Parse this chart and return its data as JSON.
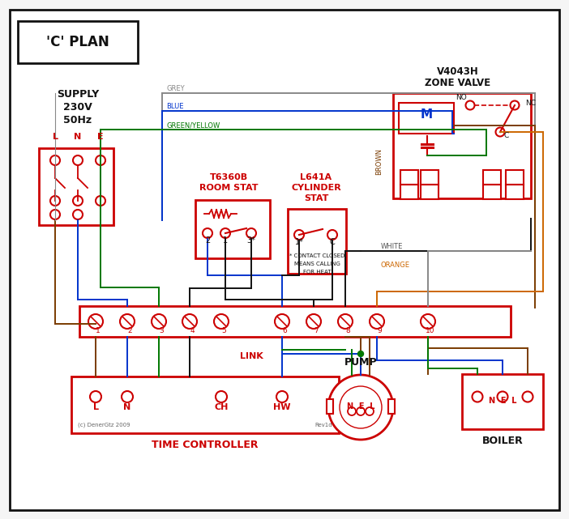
{
  "bg": "#f5f5f5",
  "white": "#ffffff",
  "black": "#111111",
  "red": "#cc0000",
  "blue": "#0033cc",
  "green": "#007700",
  "grey": "#888888",
  "brown": "#7a3b00",
  "orange": "#cc6600",
  "darkblue": "#000080",
  "title": "'C' PLAN",
  "supply_text": "SUPPLY\n230V\n50Hz",
  "lne": "L   N   E",
  "zone_valve": "V4043H\nZONE VALVE",
  "room_stat": "T6360B\nROOM STAT",
  "cyl_stat": "L641A\nCYLINDER\nSTAT",
  "contact_note": "* CONTACT CLOSED\nMEANS CALLING\nFOR HEAT",
  "time_ctrl": "TIME CONTROLLER",
  "pump_lbl": "PUMP",
  "boiler_lbl": "BOILER",
  "link_lbl": "LINK",
  "copyright": "(c) DenerGtz 2009",
  "rev": "Rev1d",
  "terminals": [
    "1",
    "2",
    "3",
    "4",
    "5",
    "6",
    "7",
    "8",
    "9",
    "10"
  ],
  "tc_terms": [
    "L",
    "N",
    "CH",
    "HW"
  ]
}
